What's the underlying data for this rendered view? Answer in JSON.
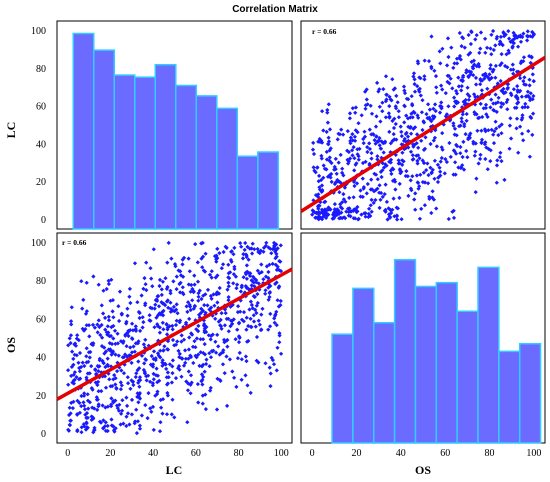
{
  "chart_data": {
    "type": "scatter-matrix",
    "title": "Correlation Matrix",
    "variables": [
      "LC",
      "OS"
    ],
    "tick_labels": [
      "0",
      "20",
      "40",
      "60",
      "80",
      "100"
    ],
    "axis_range": [
      -5,
      105
    ],
    "colors": {
      "points": "#1a1aff",
      "bars": "#6b6bff",
      "bar_edge": "#33ccff",
      "fit_line": "#e60000"
    },
    "panels": [
      {
        "id": "hist-lc",
        "type": "histogram",
        "variable": "LC",
        "bin_edges": [
          2.6,
          12.2,
          21.8,
          31.4,
          41.0,
          50.6,
          60.2,
          69.8,
          79.4,
          89.0
        ],
        "bin_width": 9.6,
        "counts": [
          94,
          86,
          74,
          73,
          79,
          69,
          64,
          58,
          35,
          37
        ],
        "count_range": [
          0,
          100
        ]
      },
      {
        "id": "scatter-os-lc",
        "type": "scatter",
        "x": "OS",
        "y": "LC",
        "r_label": "r = 0.66",
        "fit": {
          "intercept": 8.0,
          "slope": 0.74
        },
        "n_points": 1000,
        "seed": 7
      },
      {
        "id": "scatter-lc-os",
        "type": "scatter",
        "x": "LC",
        "y": "OS",
        "r_label": "r = 0.66",
        "fit": {
          "intercept": 21.0,
          "slope": 0.62
        },
        "n_points": 1000,
        "seed": 3
      },
      {
        "id": "hist-os",
        "type": "histogram",
        "variable": "OS",
        "bin_edges": [
          9.0,
          18.4,
          27.8,
          37.2,
          46.6,
          56.0,
          65.4,
          74.8,
          84.2,
          93.6
        ],
        "bin_width": 9.4,
        "counts": [
          57,
          81,
          63,
          96,
          82,
          84,
          69,
          92,
          48,
          52
        ],
        "count_range": [
          0,
          110
        ]
      }
    ]
  }
}
